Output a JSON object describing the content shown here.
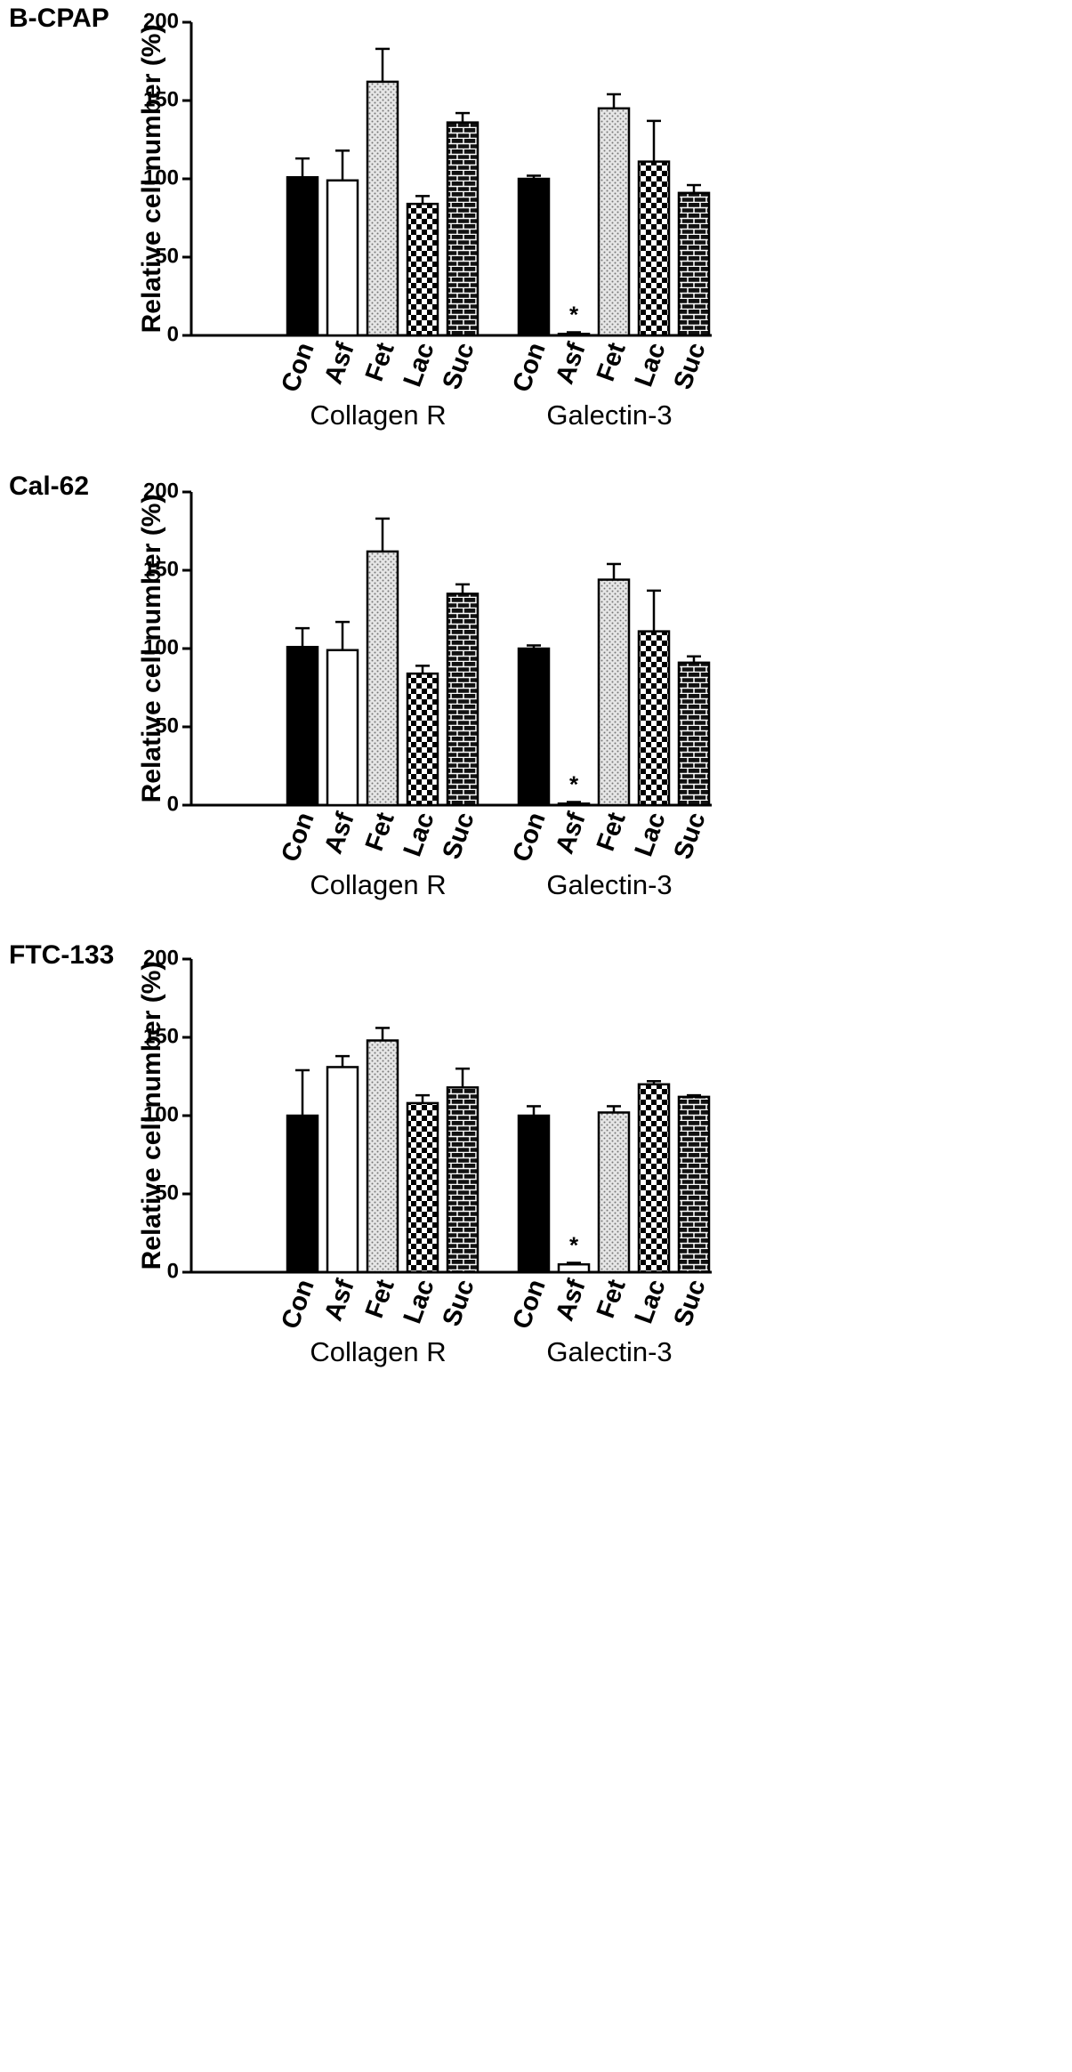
{
  "chart_data": [
    {
      "type": "bar",
      "title": "B-CPAP",
      "ylabel": "Relative cell number (%)",
      "ylim": [
        0,
        200
      ],
      "yticks": [
        0,
        50,
        100,
        150,
        200
      ],
      "groups": [
        {
          "name": "Collagen R",
          "categories": [
            "Con",
            "Asf",
            "Fet",
            "Lac",
            "Suc"
          ],
          "values": [
            101,
            99,
            162,
            84,
            136
          ],
          "errors": [
            12,
            19,
            21,
            5,
            6
          ],
          "value_annotations": [
            null,
            null,
            null,
            null,
            null
          ]
        },
        {
          "name": "Galectin-3",
          "categories": [
            "Con",
            "Asf",
            "Fet",
            "Lac",
            "Suc"
          ],
          "values": [
            100,
            1,
            145,
            111,
            91
          ],
          "errors": [
            2,
            1,
            9,
            26,
            5
          ],
          "value_annotations": [
            null,
            "*",
            null,
            null,
            null
          ]
        }
      ]
    },
    {
      "type": "bar",
      "title": "Cal-62",
      "ylabel": "Relative cell number (%)",
      "ylim": [
        0,
        200
      ],
      "yticks": [
        0,
        50,
        100,
        150,
        200
      ],
      "groups": [
        {
          "name": "Collagen R",
          "categories": [
            "Con",
            "Asf",
            "Fet",
            "Lac",
            "Suc"
          ],
          "values": [
            101,
            99,
            162,
            84,
            135
          ],
          "errors": [
            12,
            18,
            21,
            5,
            6
          ],
          "value_annotations": [
            null,
            null,
            null,
            null,
            null
          ]
        },
        {
          "name": "Galectin-3",
          "categories": [
            "Con",
            "Asf",
            "Fet",
            "Lac",
            "Suc"
          ],
          "values": [
            100,
            1,
            144,
            111,
            91
          ],
          "errors": [
            2,
            1,
            10,
            26,
            4
          ],
          "value_annotations": [
            null,
            "*",
            null,
            null,
            null
          ]
        }
      ]
    },
    {
      "type": "bar",
      "title": "FTC-133",
      "ylabel": "Relative cell number (%)",
      "ylim": [
        0,
        200
      ],
      "yticks": [
        0,
        50,
        100,
        150,
        200
      ],
      "groups": [
        {
          "name": "Collagen R",
          "categories": [
            "Con",
            "Asf",
            "Fet",
            "Lac",
            "Suc"
          ],
          "values": [
            100,
            131,
            148,
            108,
            118
          ],
          "errors": [
            29,
            7,
            8,
            5,
            12
          ],
          "value_annotations": [
            null,
            null,
            null,
            null,
            null
          ]
        },
        {
          "name": "Galectin-3",
          "categories": [
            "Con",
            "Asf",
            "Fet",
            "Lac",
            "Suc"
          ],
          "values": [
            100,
            5,
            102,
            120,
            112
          ],
          "errors": [
            6,
            1,
            4,
            2,
            1
          ],
          "value_annotations": [
            null,
            "*",
            null,
            null,
            null
          ]
        }
      ]
    }
  ]
}
